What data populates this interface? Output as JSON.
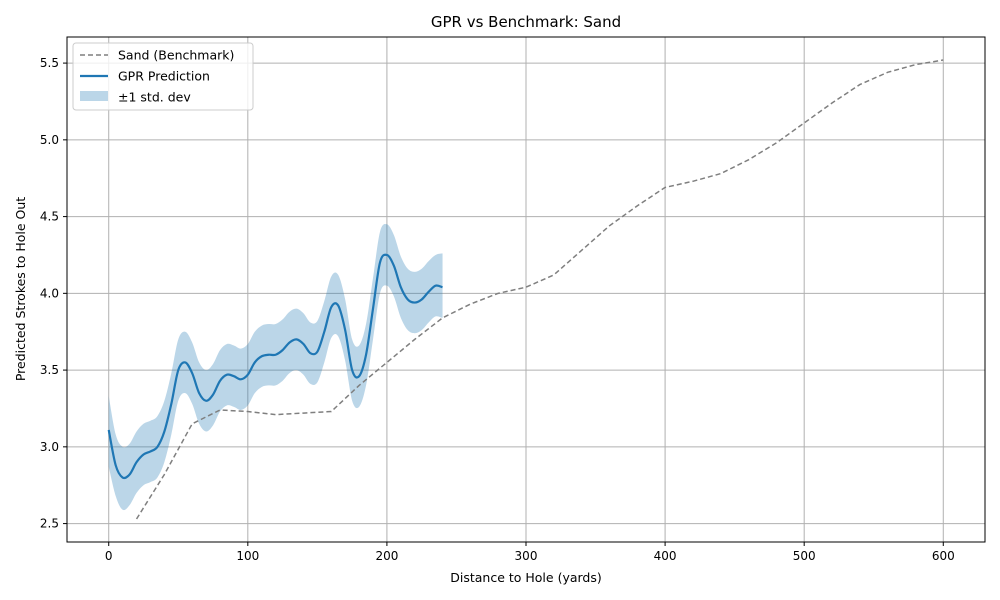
{
  "chart_data": {
    "type": "line",
    "title": "GPR vs Benchmark: Sand",
    "xlabel": "Distance to Hole (yards)",
    "ylabel": "Predicted Strokes to Hole Out",
    "xlim": [
      -30,
      630
    ],
    "ylim": [
      2.38,
      5.67
    ],
    "xticks": [
      0,
      100,
      200,
      300,
      400,
      500,
      600
    ],
    "yticks": [
      2.5,
      3.0,
      3.5,
      4.0,
      4.5,
      5.0,
      5.5
    ],
    "xtick_labels": [
      "0",
      "100",
      "200",
      "300",
      "400",
      "500",
      "600"
    ],
    "ytick_labels": [
      "2.5",
      "3.0",
      "3.5",
      "4.0",
      "4.5",
      "5.0",
      "5.5"
    ],
    "grid": true,
    "legend_position": "top-left",
    "legend": [
      "Sand (Benchmark)",
      "GPR Prediction",
      "±1 std. dev"
    ],
    "colors": {
      "benchmark": "#7f7f7f",
      "prediction": "#1f77b4",
      "band": "#1f77b4",
      "grid": "#b0b0b0"
    },
    "series": [
      {
        "name": "Sand (Benchmark)",
        "style": "dashed",
        "x": [
          20,
          40,
          60,
          80,
          100,
          120,
          140,
          160,
          180,
          200,
          220,
          240,
          260,
          280,
          300,
          320,
          340,
          360,
          380,
          400,
          420,
          440,
          460,
          480,
          500,
          520,
          540,
          560,
          580,
          600
        ],
        "y": [
          2.53,
          2.82,
          3.15,
          3.24,
          3.23,
          3.21,
          3.22,
          3.23,
          3.4,
          3.55,
          3.7,
          3.84,
          3.93,
          4.0,
          4.04,
          4.12,
          4.28,
          4.44,
          4.57,
          4.69,
          4.73,
          4.78,
          4.87,
          4.98,
          5.11,
          5.24,
          5.36,
          5.44,
          5.49,
          5.52
        ]
      },
      {
        "name": "GPR Prediction",
        "style": "solid",
        "x": [
          0,
          5,
          10,
          15,
          20,
          25,
          30,
          35,
          40,
          45,
          50,
          55,
          60,
          65,
          70,
          75,
          80,
          85,
          90,
          95,
          100,
          105,
          110,
          115,
          120,
          125,
          130,
          135,
          140,
          145,
          150,
          155,
          160,
          165,
          170,
          175,
          180,
          185,
          190,
          195,
          200,
          205,
          210,
          215,
          220,
          225,
          230,
          235,
          240
        ],
        "y": [
          3.11,
          2.88,
          2.8,
          2.82,
          2.9,
          2.95,
          2.97,
          3.0,
          3.1,
          3.28,
          3.5,
          3.55,
          3.48,
          3.35,
          3.3,
          3.34,
          3.43,
          3.47,
          3.46,
          3.44,
          3.47,
          3.55,
          3.59,
          3.6,
          3.6,
          3.63,
          3.68,
          3.7,
          3.67,
          3.61,
          3.62,
          3.75,
          3.91,
          3.92,
          3.76,
          3.5,
          3.46,
          3.6,
          3.9,
          4.2,
          4.25,
          4.18,
          4.04,
          3.96,
          3.94,
          3.96,
          4.01,
          4.05,
          4.04
        ]
      },
      {
        "name": "±1 std. dev",
        "style": "band",
        "x": [
          0,
          5,
          10,
          15,
          20,
          25,
          30,
          35,
          40,
          45,
          50,
          55,
          60,
          65,
          70,
          75,
          80,
          85,
          90,
          95,
          100,
          105,
          110,
          115,
          120,
          125,
          130,
          135,
          140,
          145,
          150,
          155,
          160,
          165,
          170,
          175,
          180,
          185,
          190,
          195,
          200,
          205,
          210,
          215,
          220,
          225,
          230,
          235,
          240
        ],
        "upper": [
          3.33,
          3.08,
          3.0,
          3.02,
          3.1,
          3.15,
          3.17,
          3.2,
          3.3,
          3.48,
          3.7,
          3.75,
          3.68,
          3.55,
          3.5,
          3.54,
          3.63,
          3.67,
          3.66,
          3.64,
          3.67,
          3.75,
          3.79,
          3.8,
          3.8,
          3.83,
          3.88,
          3.9,
          3.87,
          3.81,
          3.82,
          3.95,
          4.11,
          4.12,
          3.96,
          3.7,
          3.66,
          3.8,
          4.1,
          4.4,
          4.45,
          4.38,
          4.24,
          4.16,
          4.14,
          4.16,
          4.21,
          4.25,
          4.26
        ],
        "lower": [
          2.87,
          2.68,
          2.59,
          2.62,
          2.7,
          2.75,
          2.77,
          2.8,
          2.9,
          3.08,
          3.3,
          3.35,
          3.28,
          3.15,
          3.1,
          3.14,
          3.23,
          3.27,
          3.26,
          3.24,
          3.27,
          3.35,
          3.39,
          3.4,
          3.4,
          3.43,
          3.48,
          3.5,
          3.47,
          3.41,
          3.42,
          3.55,
          3.71,
          3.72,
          3.56,
          3.3,
          3.26,
          3.4,
          3.7,
          4.0,
          4.05,
          3.98,
          3.84,
          3.76,
          3.74,
          3.76,
          3.81,
          3.85,
          3.84
        ]
      }
    ]
  }
}
